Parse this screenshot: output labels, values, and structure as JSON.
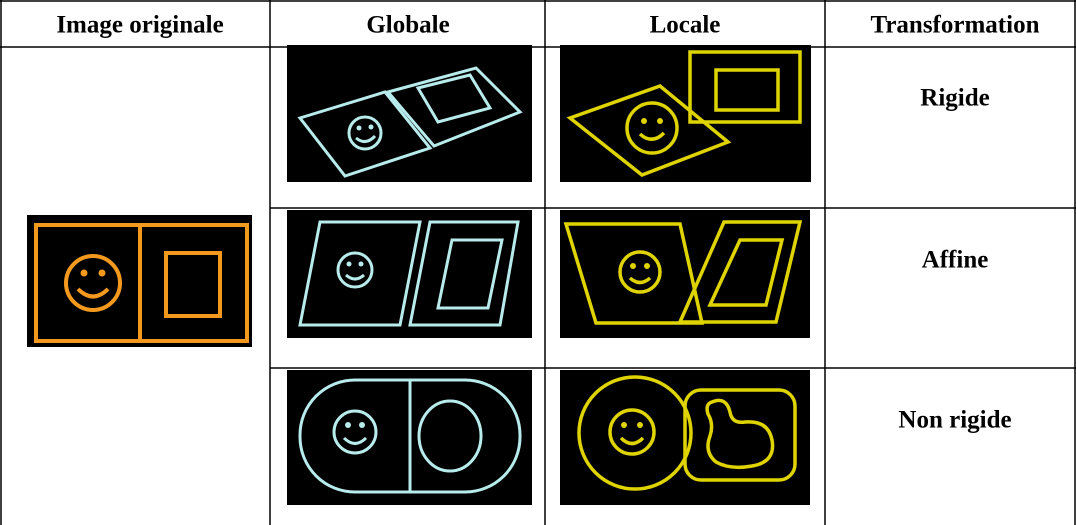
{
  "table": {
    "header": [
      "Image originale",
      "Globale",
      "Locale",
      "Transformation"
    ],
    "rows": [
      [
        "Rigide"
      ],
      [
        "Affine"
      ],
      [
        "Non rigide"
      ]
    ]
  }
}
